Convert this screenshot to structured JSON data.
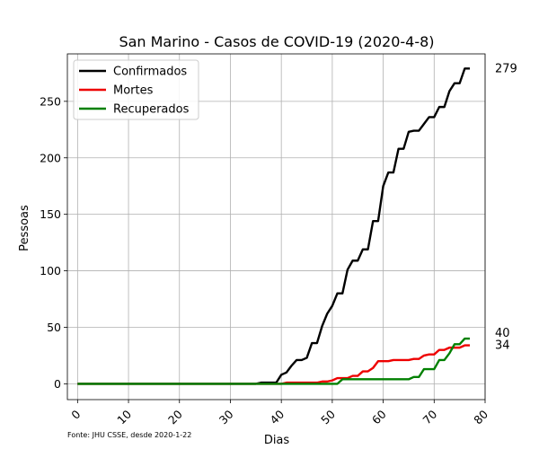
{
  "chart_data": {
    "type": "line",
    "title": "San Marino - Casos de COVID-19 (2020-4-8)",
    "xlabel": "Dias",
    "ylabel": "Pessoas",
    "xlim": [
      -2,
      80
    ],
    "ylim": [
      -14,
      292
    ],
    "xticks": [
      0,
      10,
      20,
      30,
      40,
      50,
      60,
      70,
      80
    ],
    "yticks": [
      0,
      50,
      100,
      150,
      200,
      250
    ],
    "grid": true,
    "legend_position": "top-left",
    "source_note": "Fonte: JHU CSSE, desde 2020-1-22",
    "series": [
      {
        "name": "Confirmados",
        "color": "#000000",
        "end_label": "279",
        "points": [
          [
            0,
            0
          ],
          [
            35,
            0
          ],
          [
            36,
            1
          ],
          [
            39,
            1
          ],
          [
            40,
            8
          ],
          [
            41,
            10
          ],
          [
            42,
            16
          ],
          [
            43,
            21
          ],
          [
            44,
            21
          ],
          [
            45,
            23
          ],
          [
            46,
            36
          ],
          [
            47,
            36
          ],
          [
            48,
            51
          ],
          [
            49,
            62
          ],
          [
            50,
            69
          ],
          [
            51,
            80
          ],
          [
            52,
            80
          ],
          [
            53,
            101
          ],
          [
            54,
            109
          ],
          [
            55,
            109
          ],
          [
            56,
            119
          ],
          [
            57,
            119
          ],
          [
            58,
            144
          ],
          [
            59,
            144
          ],
          [
            60,
            175
          ],
          [
            61,
            187
          ],
          [
            62,
            187
          ],
          [
            63,
            208
          ],
          [
            64,
            208
          ],
          [
            65,
            223
          ],
          [
            66,
            224
          ],
          [
            67,
            224
          ],
          [
            68,
            230
          ],
          [
            69,
            236
          ],
          [
            70,
            236
          ],
          [
            71,
            245
          ],
          [
            72,
            245
          ],
          [
            73,
            259
          ],
          [
            74,
            266
          ],
          [
            75,
            266
          ],
          [
            76,
            279
          ],
          [
            77,
            279
          ]
        ]
      },
      {
        "name": "Mortes",
        "color": "#ee0000",
        "end_label": "34",
        "points": [
          [
            0,
            0
          ],
          [
            40,
            0
          ],
          [
            41,
            1
          ],
          [
            47,
            1
          ],
          [
            48,
            2
          ],
          [
            49,
            2
          ],
          [
            50,
            3
          ],
          [
            51,
            5
          ],
          [
            52,
            5
          ],
          [
            53,
            5
          ],
          [
            54,
            7
          ],
          [
            55,
            7
          ],
          [
            56,
            11
          ],
          [
            57,
            11
          ],
          [
            58,
            14
          ],
          [
            59,
            20
          ],
          [
            60,
            20
          ],
          [
            61,
            20
          ],
          [
            62,
            21
          ],
          [
            63,
            21
          ],
          [
            64,
            21
          ],
          [
            65,
            21
          ],
          [
            66,
            22
          ],
          [
            67,
            22
          ],
          [
            68,
            25
          ],
          [
            69,
            26
          ],
          [
            70,
            26
          ],
          [
            71,
            30
          ],
          [
            72,
            30
          ],
          [
            73,
            32
          ],
          [
            74,
            32
          ],
          [
            75,
            32
          ],
          [
            76,
            34
          ],
          [
            77,
            34
          ]
        ]
      },
      {
        "name": "Recuperados",
        "color": "#008000",
        "end_label": "40",
        "points": [
          [
            0,
            0
          ],
          [
            51,
            0
          ],
          [
            52,
            4
          ],
          [
            64,
            4
          ],
          [
            65,
            4
          ],
          [
            66,
            6
          ],
          [
            67,
            6
          ],
          [
            68,
            13
          ],
          [
            69,
            13
          ],
          [
            70,
            13
          ],
          [
            71,
            21
          ],
          [
            72,
            21
          ],
          [
            73,
            27
          ],
          [
            74,
            35
          ],
          [
            75,
            35
          ],
          [
            76,
            40
          ],
          [
            77,
            40
          ]
        ]
      }
    ]
  }
}
